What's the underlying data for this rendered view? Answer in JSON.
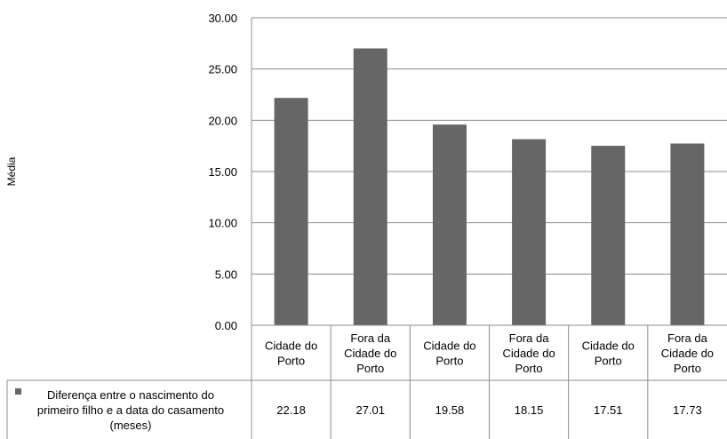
{
  "chart_data": {
    "type": "bar",
    "categories": [
      [
        "Cidade do",
        "Porto"
      ],
      [
        "Fora da",
        "Cidade do",
        "Porto"
      ],
      [
        "Cidade do",
        "Porto"
      ],
      [
        "Fora da",
        "Cidade do",
        "Porto"
      ],
      [
        "Cidade do",
        "Porto"
      ],
      [
        "Fora da",
        "Cidade do",
        "Porto"
      ]
    ],
    "series": [
      {
        "name": [
          "Diferença entre o nascimento do",
          "primeiro filho e a data do casamento",
          "(meses)"
        ],
        "values": [
          22.18,
          27.01,
          19.58,
          18.15,
          17.51,
          17.73
        ],
        "value_labels": [
          "22.18",
          "27.01",
          "19.58",
          "18.15",
          "17.51",
          "17.73"
        ],
        "color": "#666666"
      }
    ],
    "ylabel": "Média",
    "ylim": [
      0,
      30
    ],
    "yticks": [
      "0.00",
      "5.00",
      "10.00",
      "15.00",
      "20.00",
      "25.00",
      "30.00"
    ],
    "grid": true,
    "legend": "data-table-bottom-left",
    "colors": {
      "bar": "#666666",
      "grid": "#8c8c8c",
      "axis": "#8c8c8c"
    }
  }
}
